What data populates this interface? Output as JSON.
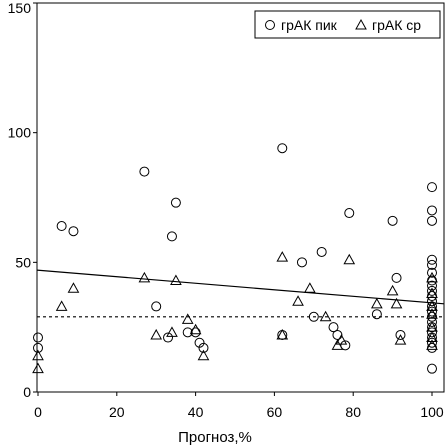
{
  "chart_data": {
    "type": "scatter",
    "title": "",
    "xlabel": "Прогноз,%",
    "ylabel": "",
    "xlim": [
      0,
      100
    ],
    "ylim": [
      0,
      150
    ],
    "xticks": [
      "0",
      "20",
      "40",
      "60",
      "80",
      "100"
    ],
    "yticks": [
      "0",
      "50",
      "100",
      "150"
    ],
    "grid": false,
    "legend_position": "top-right",
    "series": [
      {
        "name": "грАК пик",
        "marker": "circle",
        "points": [
          [
            0,
            21
          ],
          [
            0,
            17
          ],
          [
            6,
            64
          ],
          [
            9,
            62
          ],
          [
            27,
            85
          ],
          [
            30,
            33
          ],
          [
            33,
            21
          ],
          [
            34,
            60
          ],
          [
            35,
            73
          ],
          [
            38,
            23
          ],
          [
            40,
            23
          ],
          [
            41,
            19
          ],
          [
            42,
            17
          ],
          [
            62,
            94
          ],
          [
            62,
            22
          ],
          [
            67,
            50
          ],
          [
            70,
            29
          ],
          [
            72,
            54
          ],
          [
            75,
            25
          ],
          [
            76,
            22
          ],
          [
            78,
            18
          ],
          [
            79,
            69
          ],
          [
            86,
            30
          ],
          [
            90,
            66
          ],
          [
            91,
            44
          ],
          [
            92,
            22
          ],
          [
            100,
            79
          ],
          [
            100,
            70
          ],
          [
            100,
            66
          ],
          [
            100,
            51
          ],
          [
            100,
            49
          ],
          [
            100,
            46
          ],
          [
            100,
            43
          ],
          [
            100,
            41
          ],
          [
            100,
            39
          ],
          [
            100,
            37
          ],
          [
            100,
            35
          ],
          [
            100,
            33
          ],
          [
            100,
            31
          ],
          [
            100,
            29
          ],
          [
            100,
            27
          ],
          [
            100,
            25
          ],
          [
            100,
            23
          ],
          [
            100,
            21
          ],
          [
            100,
            19
          ],
          [
            100,
            17
          ],
          [
            100,
            9
          ]
        ]
      },
      {
        "name": "грАК ср",
        "marker": "triangle",
        "points": [
          [
            0,
            14
          ],
          [
            0,
            9
          ],
          [
            6,
            33
          ],
          [
            9,
            40
          ],
          [
            27,
            44
          ],
          [
            30,
            22
          ],
          [
            34,
            23
          ],
          [
            35,
            43
          ],
          [
            38,
            28
          ],
          [
            40,
            24
          ],
          [
            42,
            14
          ],
          [
            62,
            52
          ],
          [
            62,
            22
          ],
          [
            66,
            35
          ],
          [
            69,
            40
          ],
          [
            73,
            29
          ],
          [
            76,
            18
          ],
          [
            77,
            20
          ],
          [
            79,
            51
          ],
          [
            86,
            34
          ],
          [
            90,
            39
          ],
          [
            91,
            34
          ],
          [
            92,
            20
          ],
          [
            100,
            44
          ],
          [
            100,
            38
          ],
          [
            100,
            33
          ],
          [
            100,
            30
          ],
          [
            100,
            25
          ],
          [
            100,
            21
          ],
          [
            100,
            18
          ]
        ]
      }
    ],
    "lines": [
      {
        "style": "solid",
        "from": [
          0,
          47
        ],
        "to": [
          100,
          34
        ]
      },
      {
        "style": "dotted",
        "from": [
          0,
          29
        ],
        "to": [
          100,
          29
        ]
      }
    ]
  }
}
